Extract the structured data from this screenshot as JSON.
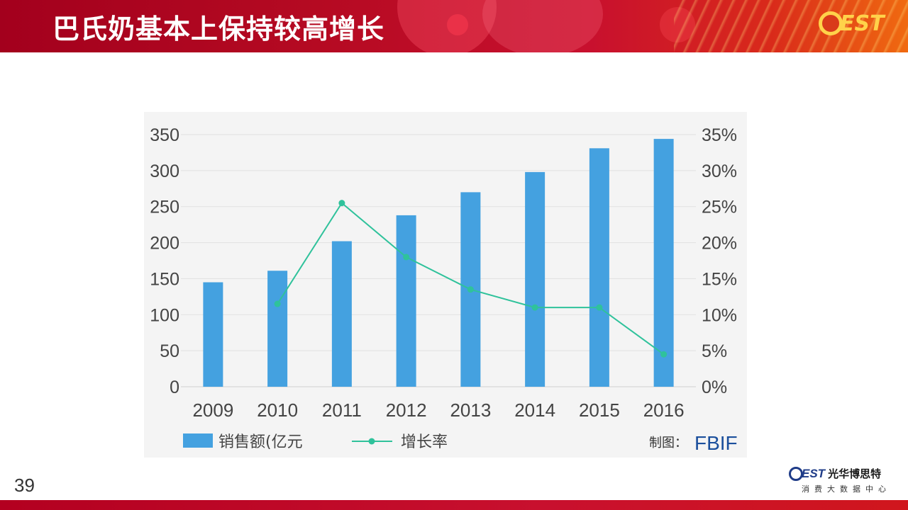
{
  "header": {
    "title": "巴氏奶基本上保持较高增长",
    "logo_text": "EST"
  },
  "footer": {
    "page_number": "39",
    "logo_est": "EST",
    "logo_cn": "光华博思特",
    "logo_sub": "消费大数据中心"
  },
  "chart_data": {
    "type": "bar",
    "categories": [
      "2009",
      "2010",
      "2011",
      "2012",
      "2013",
      "2014",
      "2015",
      "2016"
    ],
    "series": [
      {
        "name": "销售额(亿元",
        "type": "bar",
        "axis": "left",
        "color": "#44a1e0",
        "values": [
          145,
          161,
          202,
          238,
          270,
          298,
          331,
          344
        ]
      },
      {
        "name": "增长率",
        "type": "line",
        "axis": "right",
        "color": "#2fc29b",
        "values": [
          null,
          11.5,
          25.5,
          18.0,
          13.5,
          11.0,
          11.0,
          4.5
        ]
      }
    ],
    "y_left": {
      "ticks": [
        "0",
        "50",
        "100",
        "150",
        "200",
        "250",
        "300",
        "350"
      ],
      "ylim": [
        0,
        350
      ]
    },
    "y_right": {
      "ticks": [
        "0%",
        "5%",
        "10%",
        "15%",
        "20%",
        "25%",
        "30%",
        "35%"
      ],
      "ylim": [
        0,
        35
      ]
    },
    "grid": true,
    "legend_position": "bottom",
    "source_label": "制图：",
    "source_brand": "FBIF"
  }
}
